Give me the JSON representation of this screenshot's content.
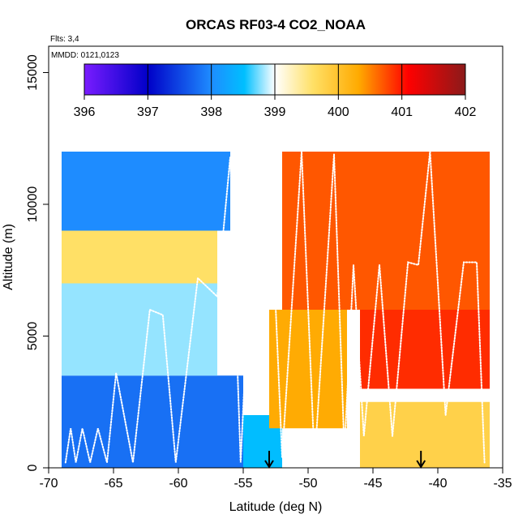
{
  "chart_data": {
    "type": "heatmap",
    "title": "ORCAS RF03-4 CO2_NOAA",
    "annotations": [
      "Flts: 3,4",
      "MMDD: 0121,0123"
    ],
    "xlabel": "Latitude (deg N)",
    "ylabel": "Altitude (m)",
    "xlim": [
      -70,
      -35
    ],
    "ylim": [
      0,
      16000
    ],
    "x_ticks": [
      -70,
      -65,
      -60,
      -55,
      -50,
      -45,
      -40,
      -35
    ],
    "y_ticks": [
      0,
      5000,
      10000,
      15000
    ],
    "colorbar": {
      "min": 396,
      "max": 402,
      "ticks": [
        396,
        397,
        398,
        399,
        400,
        401,
        402
      ],
      "placement": "top",
      "colors": [
        "#7a1cff",
        "#0000c8",
        "#1e8cff",
        "#00bfff",
        "#ffffff",
        "#ffe066",
        "#ffaa00",
        "#ff0000",
        "#8b1a1a"
      ]
    },
    "regions": [
      {
        "lat": [
          -69,
          -55
        ],
        "alt": [
          0,
          3500
        ],
        "co2": 397.8
      },
      {
        "lat": [
          -69,
          -57
        ],
        "alt": [
          3500,
          7000
        ],
        "co2": 398.8
      },
      {
        "lat": [
          -69,
          -57
        ],
        "alt": [
          7000,
          9000
        ],
        "co2": 399.6
      },
      {
        "lat": [
          -69,
          -56
        ],
        "alt": [
          9000,
          12000
        ],
        "co2": 398.0
      },
      {
        "lat": [
          -55,
          -52
        ],
        "alt": [
          0,
          2000
        ],
        "co2": 398.5
      },
      {
        "lat": [
          -52,
          -46
        ],
        "alt": [
          0,
          1500
        ],
        "co2": 399.0
      },
      {
        "lat": [
          -53,
          -47
        ],
        "alt": [
          1500,
          6000
        ],
        "co2": 400.3
      },
      {
        "lat": [
          -52,
          -36
        ],
        "alt": [
          6000,
          12000
        ],
        "co2": 400.7
      },
      {
        "lat": [
          -46,
          -36
        ],
        "alt": [
          3000,
          6000
        ],
        "co2": 400.9
      },
      {
        "lat": [
          -46,
          -36
        ],
        "alt": [
          0,
          2500
        ],
        "co2": 399.8
      }
    ],
    "flight_track": {
      "lat": [
        -68.7,
        -68.3,
        -67.9,
        -67.4,
        -66.8,
        -66.2,
        -65.5,
        -64.8,
        -63.5,
        -62.2,
        -61.2,
        -60.2,
        -58.5,
        -57.0,
        -56.0,
        -55.2,
        -54.5,
        -53.0,
        -52.0,
        -50.5,
        -49.5,
        -48.0,
        -47.2,
        -46.5,
        -45.7,
        -44.5,
        -43.5,
        -42.3,
        -41.5,
        -40.6,
        -39.4,
        -38.0,
        -37.0,
        -36.4
      ],
      "alt": [
        200,
        1500,
        200,
        1500,
        200,
        1500,
        200,
        3600,
        200,
        6000,
        5800,
        200,
        7200,
        6500,
        11800,
        200,
        7400,
        11800,
        400,
        12000,
        200,
        11900,
        600,
        7700,
        1200,
        7700,
        1200,
        7800,
        7700,
        12000,
        2000,
        7800,
        7800,
        200
      ]
    },
    "arrow_markers_lat": [
      -53.0,
      -41.3
    ]
  }
}
